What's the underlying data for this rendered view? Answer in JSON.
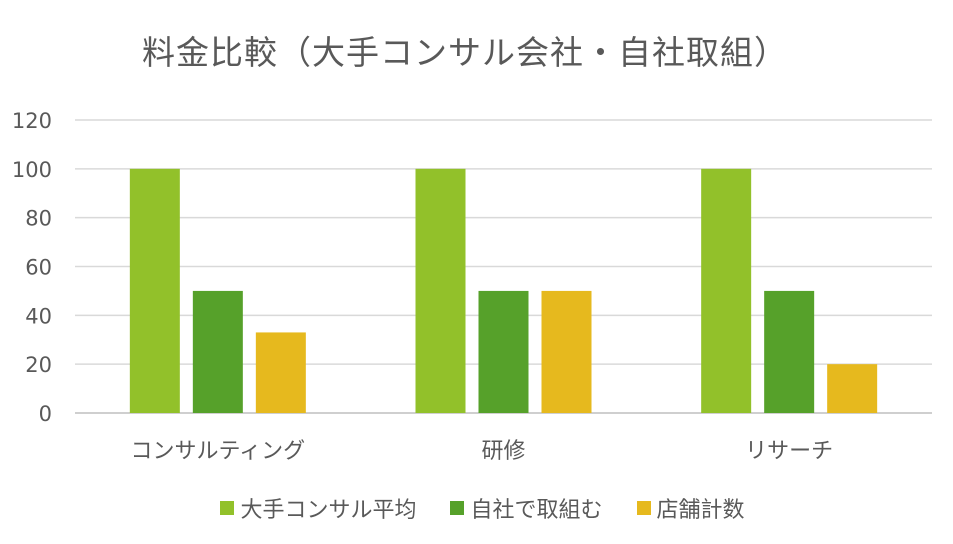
{
  "chart_data": {
    "type": "bar",
    "title": "料金比較（大手コンサル会社・自社取組）",
    "categories": [
      "コンサルティング",
      "研修",
      "リサーチ"
    ],
    "series": [
      {
        "name": "大手コンサル平均",
        "color": "#92C12A",
        "values": [
          100,
          100,
          100
        ]
      },
      {
        "name": "自社で取組む",
        "color": "#56A12A",
        "values": [
          50,
          50,
          50
        ]
      },
      {
        "name": "店舗計数",
        "color": "#E6B91E",
        "values": [
          33,
          50,
          20
        ]
      }
    ],
    "ylim": [
      0,
      120
    ],
    "yticks": [
      0,
      20,
      40,
      60,
      80,
      100,
      120
    ],
    "grid": true,
    "legend_position": "bottom"
  }
}
